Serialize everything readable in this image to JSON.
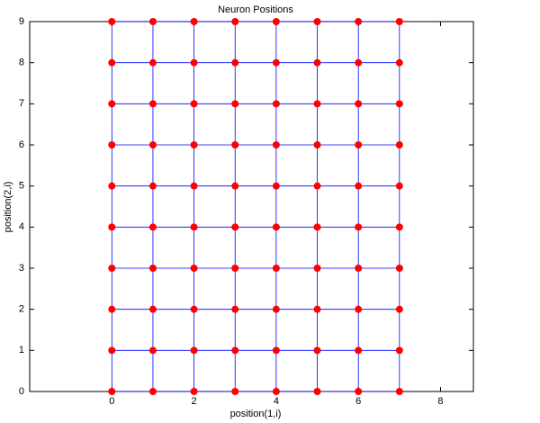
{
  "chart_data": {
    "type": "scatter",
    "title": "Neuron Positions",
    "x_label": "position(1,i)",
    "y_label": "position(2,i)",
    "x": [
      0,
      1,
      2,
      3,
      4,
      5,
      6,
      7,
      0,
      1,
      2,
      3,
      4,
      5,
      6,
      7,
      0,
      1,
      2,
      3,
      4,
      5,
      6,
      7,
      0,
      1,
      2,
      3,
      4,
      5,
      6,
      7,
      0,
      1,
      2,
      3,
      4,
      5,
      6,
      7,
      0,
      1,
      2,
      3,
      4,
      5,
      6,
      7,
      0,
      1,
      2,
      3,
      4,
      5,
      6,
      7,
      0,
      1,
      2,
      3,
      4,
      5,
      6,
      7,
      0,
      1,
      2,
      3,
      4,
      5,
      6,
      7,
      0,
      1,
      2,
      3,
      4,
      5,
      6,
      7
    ],
    "y": [
      0,
      0,
      0,
      0,
      0,
      0,
      0,
      0,
      1,
      1,
      1,
      1,
      1,
      1,
      1,
      1,
      2,
      2,
      2,
      2,
      2,
      2,
      2,
      2,
      3,
      3,
      3,
      3,
      3,
      3,
      3,
      3,
      4,
      4,
      4,
      4,
      4,
      4,
      4,
      4,
      5,
      5,
      5,
      5,
      5,
      5,
      5,
      5,
      6,
      6,
      6,
      6,
      6,
      6,
      6,
      6,
      7,
      7,
      7,
      7,
      7,
      7,
      7,
      7,
      8,
      8,
      8,
      8,
      8,
      8,
      8,
      8,
      9,
      9,
      9,
      9,
      9,
      9,
      9,
      9
    ],
    "point_color": "#ff0000",
    "line_color": "#0000ff",
    "xlim": [
      -2,
      8.8
    ],
    "ylim": [
      0,
      9
    ],
    "xticks": [
      0,
      2,
      4,
      6,
      8
    ],
    "yticks": [
      0,
      1,
      2,
      3,
      4,
      5,
      6,
      7,
      8,
      9
    ]
  }
}
